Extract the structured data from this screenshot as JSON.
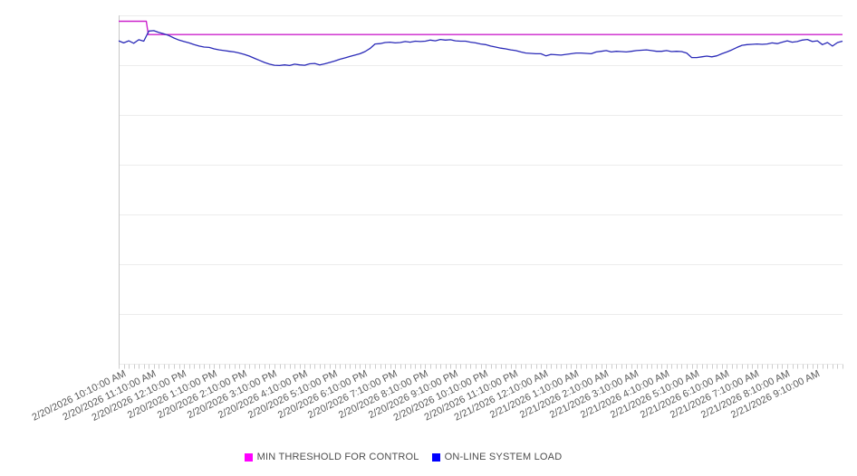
{
  "chart_data": {
    "type": "line",
    "title": "",
    "xlabel": "",
    "ylabel": "",
    "legend_position": "bottom",
    "grid": "horizontal-only",
    "x_axis": {
      "start": "2/20/2026 10:10:00 AM",
      "end": "2/21/2026 10:10:00 AM",
      "minor_tick_interval_minutes": 10,
      "label_interval_minutes": 60,
      "tick_labels": [
        "2/20/2026 10:10:00 AM",
        "2/20/2026 11:10:00 AM",
        "2/20/2026 12:10:00 PM",
        "2/20/2026 1:10:00 PM",
        "2/20/2026 2:10:00 PM",
        "2/20/2026 3:10:00 PM",
        "2/20/2026 4:10:00 PM",
        "2/20/2026 5:10:00 PM",
        "2/20/2026 6:10:00 PM",
        "2/20/2026 7:10:00 PM",
        "2/20/2026 8:10:00 PM",
        "2/20/2026 9:10:00 PM",
        "2/20/2026 10:10:00 PM",
        "2/20/2026 11:10:00 PM",
        "2/21/2026 12:10:00 AM",
        "2/21/2026 1:10:00 AM",
        "2/21/2026 2:10:00 AM",
        "2/21/2026 3:10:00 AM",
        "2/21/2026 4:10:00 AM",
        "2/21/2026 5:10:00 AM",
        "2/21/2026 6:10:00 AM",
        "2/21/2026 7:10:00 AM",
        "2/21/2026 8:10:00 AM",
        "2/21/2026 9:10:00 AM"
      ]
    },
    "y_axis": {
      "tick_labels": [],
      "labels_visible": false,
      "ylim": [
        0,
        100
      ],
      "gridline_count": 8
    },
    "series": [
      {
        "name": "MIN THRESHOLD FOR CONTROL",
        "swatch_color": "#ff00ff",
        "line_color": "#cc22cc",
        "shape": "step",
        "segments": [
          {
            "from_index": 0,
            "to_index": 5.5,
            "value": 98.3
          },
          {
            "from_index": 5.9,
            "to_index": 144,
            "value": 94.5
          }
        ]
      },
      {
        "name": "ON-LINE SYSTEM LOAD",
        "swatch_color": "#0000ff",
        "line_color": "#2a2ab8",
        "shape": "polyline",
        "values": [
          92.7,
          92.1,
          92.7,
          92.0,
          93.0,
          92.6,
          95.5,
          95.6,
          95.1,
          94.7,
          94.2,
          93.5,
          92.9,
          92.5,
          92.1,
          91.6,
          91.2,
          90.9,
          90.8,
          90.4,
          90.1,
          89.9,
          89.7,
          89.5,
          89.2,
          88.8,
          88.3,
          87.7,
          87.1,
          86.5,
          86.0,
          85.7,
          85.6,
          85.8,
          85.6,
          86.0,
          85.8,
          85.7,
          86.1,
          86.2,
          85.8,
          86.1,
          86.5,
          86.9,
          87.4,
          87.8,
          88.2,
          88.6,
          89.0,
          89.6,
          90.5,
          91.8,
          91.9,
          92.2,
          92.3,
          92.1,
          92.2,
          92.5,
          92.3,
          92.6,
          92.5,
          92.6,
          92.9,
          92.7,
          93.1,
          92.9,
          93.0,
          92.7,
          92.6,
          92.6,
          92.3,
          92.1,
          91.8,
          91.6,
          91.2,
          90.9,
          90.6,
          90.4,
          90.1,
          89.9,
          89.5,
          89.2,
          89.1,
          89.0,
          89.0,
          88.4,
          88.8,
          88.7,
          88.6,
          88.8,
          89.0,
          89.2,
          89.2,
          89.1,
          89.0,
          89.5,
          89.7,
          89.9,
          89.5,
          89.7,
          89.6,
          89.5,
          89.7,
          89.9,
          90.0,
          90.1,
          89.9,
          89.7,
          89.7,
          89.9,
          89.6,
          89.7,
          89.6,
          89.2,
          87.9,
          87.9,
          88.1,
          88.3,
          88.1,
          88.4,
          89.0,
          89.5,
          90.1,
          90.8,
          91.4,
          91.6,
          91.7,
          91.8,
          91.7,
          91.8,
          92.1,
          91.9,
          92.3,
          92.7,
          92.3,
          92.5,
          92.9,
          93.1,
          92.5,
          92.7,
          91.6,
          92.2,
          91.2,
          92.2,
          92.6
        ]
      }
    ]
  },
  "colors": {
    "background": "#ffffff",
    "gridline": "#ececec",
    "axis_line": "#c8c8c8",
    "tick": "#cccccc",
    "axis_label_text": "#595959",
    "legend_text": "#4d4d4d"
  }
}
